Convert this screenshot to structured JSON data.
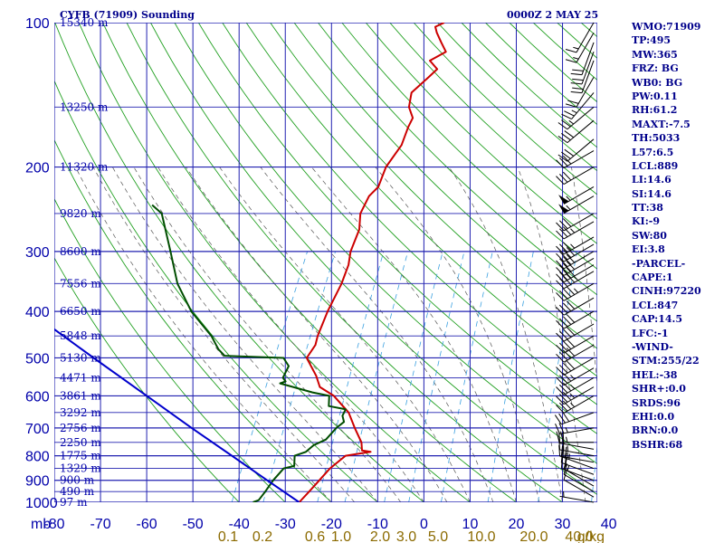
{
  "header": {
    "station": "CYFB (71909) Sounding",
    "time": "0000Z  2 MAY 25"
  },
  "chart_data": {
    "type": "skew-t",
    "pressure_unit": "mb",
    "temperature_unit": "°C",
    "mixing_ratio_unit": "g/kg",
    "p_range_mb": [
      100,
      1000
    ],
    "t_range_c": [
      -80,
      0
    ],
    "pressure_ticks": [
      100,
      200,
      300,
      400,
      500,
      600,
      700,
      800,
      900,
      1000
    ],
    "temperature_ticks": [
      -80,
      -70,
      -60,
      -50,
      -40,
      -30,
      -20,
      -10,
      0,
      10,
      20,
      30,
      40
    ],
    "mixing_ratio_labels": [
      "0.1",
      "0.2",
      "0.6",
      "1.0",
      "2.0",
      "3.0",
      "5.0",
      "10.0",
      "20.0",
      "40.0"
    ],
    "height_labels": [
      {
        "p": 100,
        "label": "15340 m"
      },
      {
        "p": 150,
        "label": "13250 m"
      },
      {
        "p": 200,
        "label": "11320 m"
      },
      {
        "p": 250,
        "label": "9820 m"
      },
      {
        "p": 300,
        "label": "8600 m"
      },
      {
        "p": 350,
        "label": "7556 m"
      },
      {
        "p": 400,
        "label": "6650 m"
      },
      {
        "p": 450,
        "label": "5848 m"
      },
      {
        "p": 500,
        "label": "5130 m"
      },
      {
        "p": 550,
        "label": "4471 m"
      },
      {
        "p": 600,
        "label": "3861 m"
      },
      {
        "p": 650,
        "label": "3292 m"
      },
      {
        "p": 700,
        "label": "2756 m"
      },
      {
        "p": 750,
        "label": "2250 m"
      },
      {
        "p": 800,
        "label": "1775 m"
      },
      {
        "p": 850,
        "label": "1329 m"
      },
      {
        "p": 900,
        "label": "900 m"
      },
      {
        "p": 950,
        "label": "490 m"
      },
      {
        "p": 1000,
        "label": "97 m"
      }
    ],
    "series": [
      {
        "color": "#cc0000",
        "points": [
          {
            "p": 1000,
            "t": -27
          },
          {
            "p": 950,
            "t": -26
          },
          {
            "p": 900,
            "t": -25
          },
          {
            "p": 850,
            "t": -24
          },
          {
            "p": 800,
            "t": -22
          },
          {
            "p": 785,
            "t": -17
          },
          {
            "p": 780,
            "t": -19
          },
          {
            "p": 750,
            "t": -20
          },
          {
            "p": 700,
            "t": -23
          },
          {
            "p": 650,
            "t": -26
          },
          {
            "p": 600,
            "t": -31
          },
          {
            "p": 575,
            "t": -35
          },
          {
            "p": 560,
            "t": -36
          },
          {
            "p": 545,
            "t": -37
          },
          {
            "p": 500,
            "t": -41
          },
          {
            "p": 470,
            "t": -40.5
          },
          {
            "p": 450,
            "t": -41
          },
          {
            "p": 400,
            "t": -41.5
          },
          {
            "p": 350,
            "t": -41.5
          },
          {
            "p": 320,
            "t": -42
          },
          {
            "p": 300,
            "t": -43
          },
          {
            "p": 270,
            "t": -43.5
          },
          {
            "p": 250,
            "t": -45
          },
          {
            "p": 230,
            "t": -45
          },
          {
            "p": 220,
            "t": -44
          },
          {
            "p": 200,
            "t": -44.5
          },
          {
            "p": 180,
            "t": -43.5
          },
          {
            "p": 165,
            "t": -44
          },
          {
            "p": 158,
            "t": -44
          },
          {
            "p": 150,
            "t": -46
          },
          {
            "p": 140,
            "t": -47
          },
          {
            "p": 130,
            "t": -45
          },
          {
            "p": 125,
            "t": -44
          },
          {
            "p": 120,
            "t": -46.5
          },
          {
            "p": 115,
            "t": -44
          },
          {
            "p": 110,
            "t": -46
          },
          {
            "p": 105,
            "t": -48
          },
          {
            "p": 102,
            "t": -49
          },
          {
            "p": 100,
            "t": -47.5
          }
        ]
      },
      {
        "color": "#004d00",
        "points": [
          {
            "p": 1000,
            "t": -37
          },
          {
            "p": 990,
            "t": -36
          },
          {
            "p": 950,
            "t": -35.5
          },
          {
            "p": 900,
            "t": -35
          },
          {
            "p": 850,
            "t": -34
          },
          {
            "p": 840,
            "t": -32
          },
          {
            "p": 800,
            "t": -33
          },
          {
            "p": 785,
            "t": -31
          },
          {
            "p": 760,
            "t": -30
          },
          {
            "p": 740,
            "t": -28
          },
          {
            "p": 700,
            "t": -27
          },
          {
            "p": 680,
            "t": -26
          },
          {
            "p": 660,
            "t": -27
          },
          {
            "p": 640,
            "t": -27
          },
          {
            "p": 630,
            "t": -31
          },
          {
            "p": 600,
            "t": -32
          },
          {
            "p": 590,
            "t": -36
          },
          {
            "p": 565,
            "t": -44
          },
          {
            "p": 560,
            "t": -43
          },
          {
            "p": 550,
            "t": -44
          },
          {
            "p": 540,
            "t": -44
          },
          {
            "p": 520,
            "t": -44
          },
          {
            "p": 500,
            "t": -46
          },
          {
            "p": 495,
            "t": -59
          },
          {
            "p": 480,
            "t": -61
          },
          {
            "p": 470,
            "t": -62
          },
          {
            "p": 450,
            "t": -64
          },
          {
            "p": 400,
            "t": -71
          },
          {
            "p": 350,
            "t": -77
          },
          {
            "p": 300,
            "t": -82
          },
          {
            "p": 250,
            "t": -88
          },
          {
            "p": 240,
            "t": -91
          }
        ]
      },
      {
        "color": "#0000cc",
        "points": [
          {
            "p": 1000,
            "t": -27
          },
          {
            "p": 900,
            "t": -36.3
          },
          {
            "p": 800,
            "t": -46.6
          },
          {
            "p": 700,
            "t": -58.3
          },
          {
            "p": 600,
            "t": -71.5
          },
          {
            "p": 500,
            "t": -87.1
          },
          {
            "p": 400,
            "t": -106
          },
          {
            "p": 320,
            "t": -124
          }
        ]
      }
    ],
    "wind_barbs": [
      {
        "p": 1000,
        "dir": 280,
        "spd": 5
      },
      {
        "p": 975,
        "dir": 300,
        "spd": 10
      },
      {
        "p": 950,
        "dir": 300,
        "spd": 10
      },
      {
        "p": 925,
        "dir": 300,
        "spd": 15
      },
      {
        "p": 900,
        "dir": 290,
        "spd": 20
      },
      {
        "p": 875,
        "dir": 290,
        "spd": 20
      },
      {
        "p": 850,
        "dir": 290,
        "spd": 25
      },
      {
        "p": 825,
        "dir": 280,
        "spd": 25
      },
      {
        "p": 800,
        "dir": 280,
        "spd": 25
      },
      {
        "p": 775,
        "dir": 280,
        "spd": 20
      },
      {
        "p": 750,
        "dir": 270,
        "spd": 25
      },
      {
        "p": 700,
        "dir": 260,
        "spd": 25
      },
      {
        "p": 650,
        "dir": 250,
        "spd": 30
      },
      {
        "p": 600,
        "dir": 240,
        "spd": 35
      },
      {
        "p": 575,
        "dir": 240,
        "spd": 35
      },
      {
        "p": 550,
        "dir": 240,
        "spd": 35
      },
      {
        "p": 525,
        "dir": 240,
        "spd": 35
      },
      {
        "p": 500,
        "dir": 240,
        "spd": 40
      },
      {
        "p": 470,
        "dir": 240,
        "spd": 40
      },
      {
        "p": 450,
        "dir": 240,
        "spd": 40
      },
      {
        "p": 425,
        "dir": 240,
        "spd": 40
      },
      {
        "p": 400,
        "dir": 240,
        "spd": 40
      },
      {
        "p": 375,
        "dir": 240,
        "spd": 40
      },
      {
        "p": 350,
        "dir": 240,
        "spd": 45
      },
      {
        "p": 330,
        "dir": 240,
        "spd": 45
      },
      {
        "p": 320,
        "dir": 240,
        "spd": 40
      },
      {
        "p": 310,
        "dir": 240,
        "spd": 40
      },
      {
        "p": 300,
        "dir": 240,
        "spd": 40
      },
      {
        "p": 290,
        "dir": 240,
        "spd": 40
      },
      {
        "p": 280,
        "dir": 240,
        "spd": 35
      },
      {
        "p": 260,
        "dir": 240,
        "spd": 35
      },
      {
        "p": 250,
        "dir": 240,
        "spd": 30
      },
      {
        "p": 230,
        "dir": 240,
        "spd": 55
      },
      {
        "p": 220,
        "dir": 240,
        "spd": 55
      },
      {
        "p": 200,
        "dir": 240,
        "spd": 30
      },
      {
        "p": 185,
        "dir": 240,
        "spd": 30
      },
      {
        "p": 175,
        "dir": 230,
        "spd": 30
      },
      {
        "p": 160,
        "dir": 230,
        "spd": 30
      },
      {
        "p": 150,
        "dir": 230,
        "spd": 25
      },
      {
        "p": 140,
        "dir": 220,
        "spd": 25
      },
      {
        "p": 130,
        "dir": 210,
        "spd": 20
      },
      {
        "p": 120,
        "dir": 200,
        "spd": 20
      },
      {
        "p": 115,
        "dir": 200,
        "spd": 20
      },
      {
        "p": 110,
        "dir": 200,
        "spd": 20
      },
      {
        "p": 105,
        "dir": 210,
        "spd": 15
      },
      {
        "p": 100,
        "dir": 210,
        "spd": 15
      }
    ]
  },
  "indices": [
    "WMO:71909",
    "TP:495",
    "MW:365",
    "FRZ: BG",
    "WB0: BG",
    "PW:0.11",
    "RH:61.2",
    "MAXT:-7.5",
    "TH:5033",
    "L57:6.5",
    "LCL:889",
    "LI:14.6",
    "SI:14.6",
    "TT:38",
    "KI:-9",
    "SW:80",
    "EI:3.8",
    "-PARCEL-",
    "CAPE:1",
    "CINH:97220",
    "LCL:847",
    "CAP:14.5",
    "LFC:-1",
    "-WIND-",
    "STM:255/22",
    "HEL:-38",
    "SHR+:0.0",
    "SRDS:96",
    "EHI:0.0",
    "BRN:0.0",
    "BSHR:68"
  ]
}
